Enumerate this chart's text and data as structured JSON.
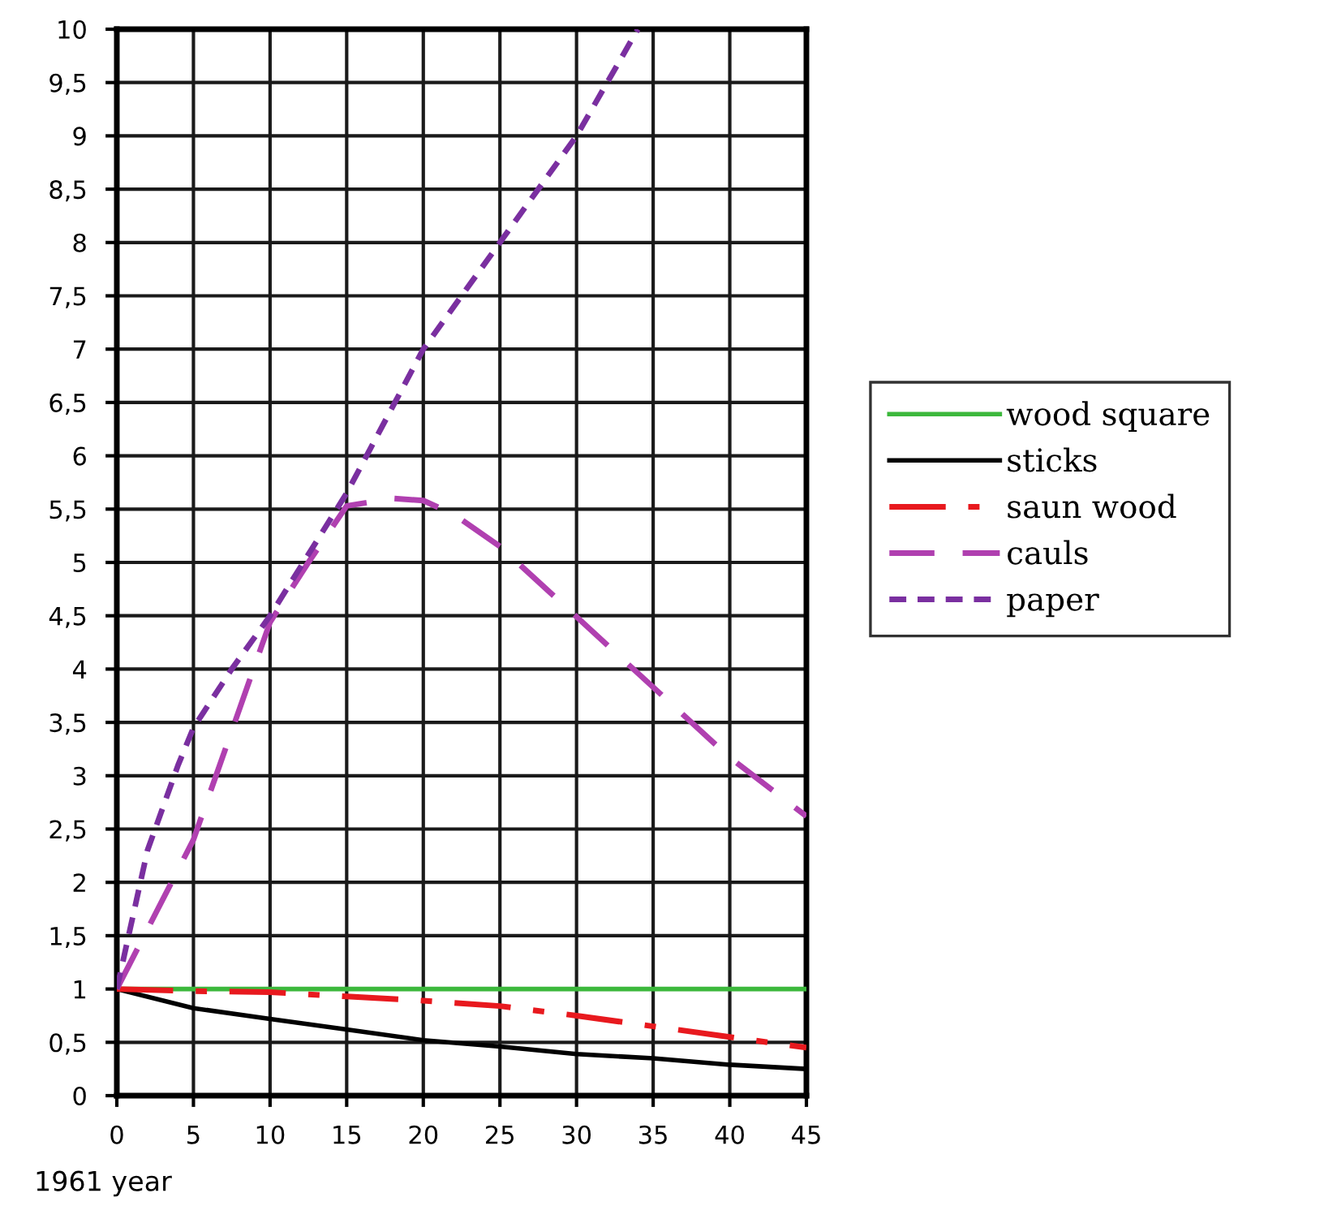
{
  "chart_data": {
    "type": "line",
    "xlabel": "1961 year",
    "xlim": [
      0,
      45
    ],
    "ylim": [
      0,
      10
    ],
    "xticks": [
      0,
      5,
      10,
      15,
      20,
      25,
      30,
      35,
      40,
      45
    ],
    "yticks": [
      0,
      {
        "value": 0.5,
        "label": "0,5"
      },
      1,
      {
        "value": 1.5,
        "label": "1,5"
      },
      2,
      {
        "value": 2.5,
        "label": "2,5"
      },
      3,
      {
        "value": 3.5,
        "label": "3,5"
      },
      4,
      {
        "value": 4.5,
        "label": "4,5"
      },
      5,
      {
        "value": 5.5,
        "label": "5,5"
      },
      6,
      {
        "value": 6.5,
        "label": "6,5"
      },
      7,
      {
        "value": 7.5,
        "label": "7,5"
      },
      8,
      {
        "value": 8.5,
        "label": "8,5"
      },
      9,
      {
        "value": 9.5,
        "label": "9,5"
      },
      10
    ],
    "grid": true,
    "legend": "right",
    "marker": "none",
    "series": [
      {
        "name": "wood square",
        "color": "#3cb83c",
        "line_style": "solid",
        "x": [
          0,
          45
        ],
        "values": [
          1,
          1
        ]
      },
      {
        "name": "sticks",
        "color": "#000000",
        "line_style": "solid",
        "x": [
          0,
          5,
          10,
          15,
          20,
          25,
          30,
          35,
          40,
          45
        ],
        "values": [
          1,
          0.82,
          0.72,
          0.62,
          0.52,
          0.46,
          0.39,
          0.35,
          0.29,
          0.25
        ]
      },
      {
        "name": "saun wood",
        "color": "#e8191e",
        "line_style": "dashdot",
        "x": [
          0,
          5,
          10,
          15,
          20,
          25,
          30,
          35,
          40,
          45
        ],
        "values": [
          1,
          0.98,
          0.97,
          0.93,
          0.89,
          0.84,
          0.75,
          0.65,
          0.55,
          0.45
        ]
      },
      {
        "name": "cauls",
        "color": "#b040b0",
        "line_style": "dashed",
        "x": [
          0,
          5,
          10,
          12.5,
          15,
          18,
          20,
          22,
          25,
          30,
          35,
          40,
          45
        ],
        "values": [
          1,
          2.4,
          4.44,
          5.0,
          5.53,
          5.6,
          5.58,
          5.45,
          5.15,
          4.49,
          3.83,
          3.17,
          2.62
        ]
      },
      {
        "name": "paper",
        "color": "#7a2fa0",
        "line_style": "dotted",
        "x": [
          0,
          2,
          4,
          5,
          7.5,
          10,
          15,
          20,
          25,
          30,
          34
        ],
        "values": [
          1,
          2.3,
          3.1,
          3.45,
          4.0,
          4.5,
          5.65,
          7,
          8,
          9,
          10
        ]
      }
    ]
  }
}
